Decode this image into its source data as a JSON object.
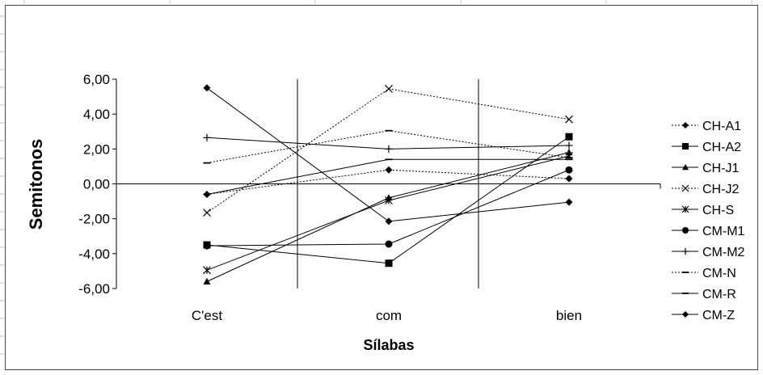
{
  "chart_data": {
    "type": "line",
    "title": "",
    "xlabel": "Sílabas",
    "ylabel": "Semitonos",
    "categories": [
      "C'est",
      "com",
      "bien"
    ],
    "ylim": [
      -6,
      6
    ],
    "yticks": [
      "6,00",
      "4,00",
      "2,00",
      "0,00",
      "-2,00",
      "-4,00",
      "-6,00"
    ],
    "grid": false,
    "legend_position": "right",
    "series": [
      {
        "name": "CH-A1",
        "values": [
          -0.6,
          0.8,
          0.3
        ],
        "marker": "diamond",
        "dash": "dotted"
      },
      {
        "name": "CH-A2",
        "values": [
          -3.5,
          -4.55,
          2.7
        ],
        "marker": "square",
        "dash": "solid"
      },
      {
        "name": "CH-J1",
        "values": [
          -5.6,
          -0.8,
          1.8
        ],
        "marker": "triangle",
        "dash": "solid"
      },
      {
        "name": "CH-J2",
        "values": [
          -1.65,
          5.45,
          3.7
        ],
        "marker": "x",
        "dash": "dotted"
      },
      {
        "name": "CH-S",
        "values": [
          -4.95,
          -0.95,
          1.6
        ],
        "marker": "star",
        "dash": "solid"
      },
      {
        "name": "CM-M1",
        "values": [
          -3.55,
          -3.45,
          0.8
        ],
        "marker": "circle",
        "dash": "solid"
      },
      {
        "name": "CM-M2",
        "values": [
          2.65,
          2.0,
          2.2
        ],
        "marker": "plus",
        "dash": "solid"
      },
      {
        "name": "CM-N",
        "values": [
          1.2,
          3.05,
          1.5
        ],
        "marker": "dash",
        "dash": "dotted"
      },
      {
        "name": "CM-R",
        "values": [
          -0.6,
          1.4,
          1.4
        ],
        "marker": "dash",
        "dash": "solid"
      },
      {
        "name": "CM-Z",
        "values": [
          5.5,
          -2.15,
          -1.05
        ],
        "marker": "diamond",
        "dash": "solid"
      }
    ]
  }
}
